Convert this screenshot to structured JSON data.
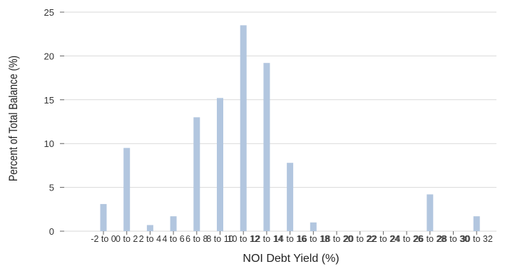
{
  "chart_data": {
    "type": "bar",
    "title": "",
    "xlabel": "NOI Debt Yield (%)",
    "ylabel": "Percent of Total Balance (%)",
    "ylim": [
      0,
      25
    ],
    "yticks": [
      0,
      5,
      10,
      15,
      20,
      25
    ],
    "grid": "horizontal",
    "bar_color": "#b2c6df",
    "categories": [
      "-2 to 0",
      "0 to 2",
      "2 to 4",
      "4 to 6",
      "6 to 8",
      "8 to 10",
      "10 to 12",
      "12 to 14",
      "14 to 16",
      "16 to 18",
      "18 to 20",
      "20 to 22",
      "22 to 24",
      "24 to 26",
      "26 to 28",
      "28 to 30",
      "30 to 32"
    ],
    "values": [
      3.1,
      9.5,
      0.7,
      1.7,
      13.0,
      15.2,
      23.5,
      19.2,
      7.8,
      1.0,
      0,
      0,
      0,
      0,
      4.2,
      0,
      1.7
    ]
  }
}
